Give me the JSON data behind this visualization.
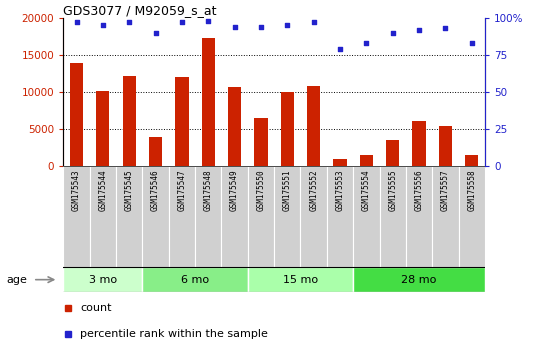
{
  "title": "GDS3077 / M92059_s_at",
  "samples": [
    "GSM175543",
    "GSM175544",
    "GSM175545",
    "GSM175546",
    "GSM175547",
    "GSM175548",
    "GSM175549",
    "GSM175550",
    "GSM175551",
    "GSM175552",
    "GSM175553",
    "GSM175554",
    "GSM175555",
    "GSM175556",
    "GSM175557",
    "GSM175558"
  ],
  "counts": [
    13900,
    10100,
    12100,
    3900,
    12000,
    17300,
    10700,
    6500,
    10000,
    10800,
    1000,
    1500,
    3600,
    6100,
    5400,
    1500
  ],
  "percentiles": [
    97,
    95,
    97,
    90,
    97,
    98,
    94,
    94,
    95,
    97,
    79,
    83,
    90,
    92,
    93,
    83
  ],
  "bar_color": "#cc2200",
  "dot_color": "#2222cc",
  "ylim_left": [
    0,
    20000
  ],
  "ylim_right": [
    0,
    100
  ],
  "yticks_left": [
    0,
    5000,
    10000,
    15000,
    20000
  ],
  "yticks_right": [
    0,
    25,
    50,
    75,
    100
  ],
  "grid_lines": [
    5000,
    10000,
    15000
  ],
  "age_groups": [
    {
      "label": "3 mo",
      "start": 0,
      "end": 3,
      "color": "#ccffcc"
    },
    {
      "label": "6 mo",
      "start": 3,
      "end": 7,
      "color": "#88ee88"
    },
    {
      "label": "15 mo",
      "start": 7,
      "end": 11,
      "color": "#aaffaa"
    },
    {
      "label": "28 mo",
      "start": 11,
      "end": 16,
      "color": "#44dd44"
    }
  ],
  "age_label": "age",
  "legend_count_label": "count",
  "legend_pct_label": "percentile rank within the sample",
  "tick_box_color": "#d0d0d0",
  "plot_bg": "#ffffff",
  "fig_bg": "#ffffff"
}
